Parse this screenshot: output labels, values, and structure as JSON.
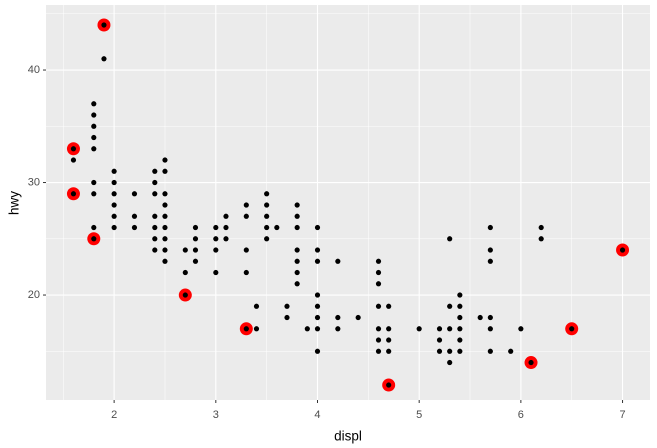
{
  "chart_data": {
    "type": "scatter",
    "x_label": "displ",
    "y_label": "hwy",
    "xlim": [
      1.33,
      7.27
    ],
    "ylim": [
      10.67,
      45.78
    ],
    "xticks": [
      2,
      3,
      4,
      5,
      6,
      7
    ],
    "yticks": [
      20,
      30,
      40
    ],
    "xminor": [
      1.5,
      2.5,
      3.5,
      4.5,
      5.5,
      6.5
    ],
    "yminor": [
      15,
      25,
      35,
      45
    ],
    "grid": true,
    "background": "#ebebeb",
    "series": [
      {
        "color": "#ff0000",
        "size": 6.5,
        "x": [
          1.6,
          1.6,
          1.8,
          1.9,
          2.7,
          3.3,
          4.7,
          6.1,
          6.5,
          7.0
        ],
        "y": [
          33,
          29,
          25,
          44,
          20,
          17,
          12,
          14,
          17,
          24
        ]
      },
      {
        "color": "#000000",
        "size": 2.6,
        "x": [
          1.6,
          1.6,
          1.6,
          1.8,
          1.8,
          1.8,
          1.8,
          1.8,
          1.8,
          1.8,
          1.8,
          1.8,
          1.9,
          1.9,
          2.0,
          2.0,
          2.0,
          2.0,
          2.0,
          2.0,
          2.2,
          2.2,
          2.2,
          2.4,
          2.4,
          2.4,
          2.4,
          2.4,
          2.4,
          2.4,
          2.5,
          2.5,
          2.5,
          2.5,
          2.5,
          2.5,
          2.5,
          2.5,
          2.5,
          2.7,
          2.7,
          2.7,
          2.8,
          2.8,
          2.8,
          2.8,
          3.0,
          3.0,
          3.0,
          3.0,
          3.1,
          3.1,
          3.1,
          3.3,
          3.3,
          3.3,
          3.3,
          3.3,
          3.4,
          3.4,
          3.5,
          3.5,
          3.5,
          3.5,
          3.5,
          3.6,
          3.7,
          3.7,
          3.8,
          3.8,
          3.8,
          3.8,
          3.8,
          3.8,
          3.8,
          3.9,
          4.0,
          4.0,
          4.0,
          4.0,
          4.0,
          4.0,
          4.0,
          4.0,
          4.2,
          4.2,
          4.2,
          4.4,
          4.6,
          4.6,
          4.6,
          4.6,
          4.6,
          4.6,
          4.6,
          4.7,
          4.7,
          4.7,
          4.7,
          4.7,
          5.0,
          5.2,
          5.2,
          5.2,
          5.3,
          5.3,
          5.3,
          5.3,
          5.3,
          5.4,
          5.4,
          5.4,
          5.4,
          5.4,
          5.4,
          5.6,
          5.7,
          5.7,
          5.7,
          5.7,
          5.7,
          5.7,
          5.9,
          6.0,
          6.1,
          6.2,
          6.2,
          6.5,
          7.0
        ],
        "y": [
          33,
          32,
          29,
          37,
          36,
          35,
          34,
          33,
          30,
          29,
          26,
          25,
          44,
          41,
          31,
          30,
          29,
          28,
          27,
          26,
          29,
          27,
          26,
          31,
          30,
          29,
          27,
          26,
          25,
          24,
          32,
          31,
          29,
          28,
          27,
          26,
          25,
          24,
          23,
          24,
          22,
          20,
          26,
          25,
          24,
          23,
          26,
          25,
          24,
          22,
          27,
          26,
          25,
          28,
          27,
          24,
          22,
          17,
          19,
          17,
          29,
          28,
          27,
          26,
          25,
          26,
          19,
          18,
          28,
          27,
          26,
          24,
          23,
          22,
          21,
          17,
          26,
          24,
          23,
          20,
          19,
          18,
          17,
          15,
          23,
          18,
          17,
          18,
          23,
          22,
          21,
          19,
          17,
          16,
          15,
          19,
          17,
          16,
          15,
          12,
          17,
          17,
          16,
          15,
          25,
          19,
          17,
          15,
          14,
          20,
          19,
          18,
          17,
          16,
          15,
          18,
          26,
          24,
          23,
          18,
          17,
          15,
          15,
          17,
          14,
          26,
          25,
          17,
          24
        ]
      }
    ]
  }
}
